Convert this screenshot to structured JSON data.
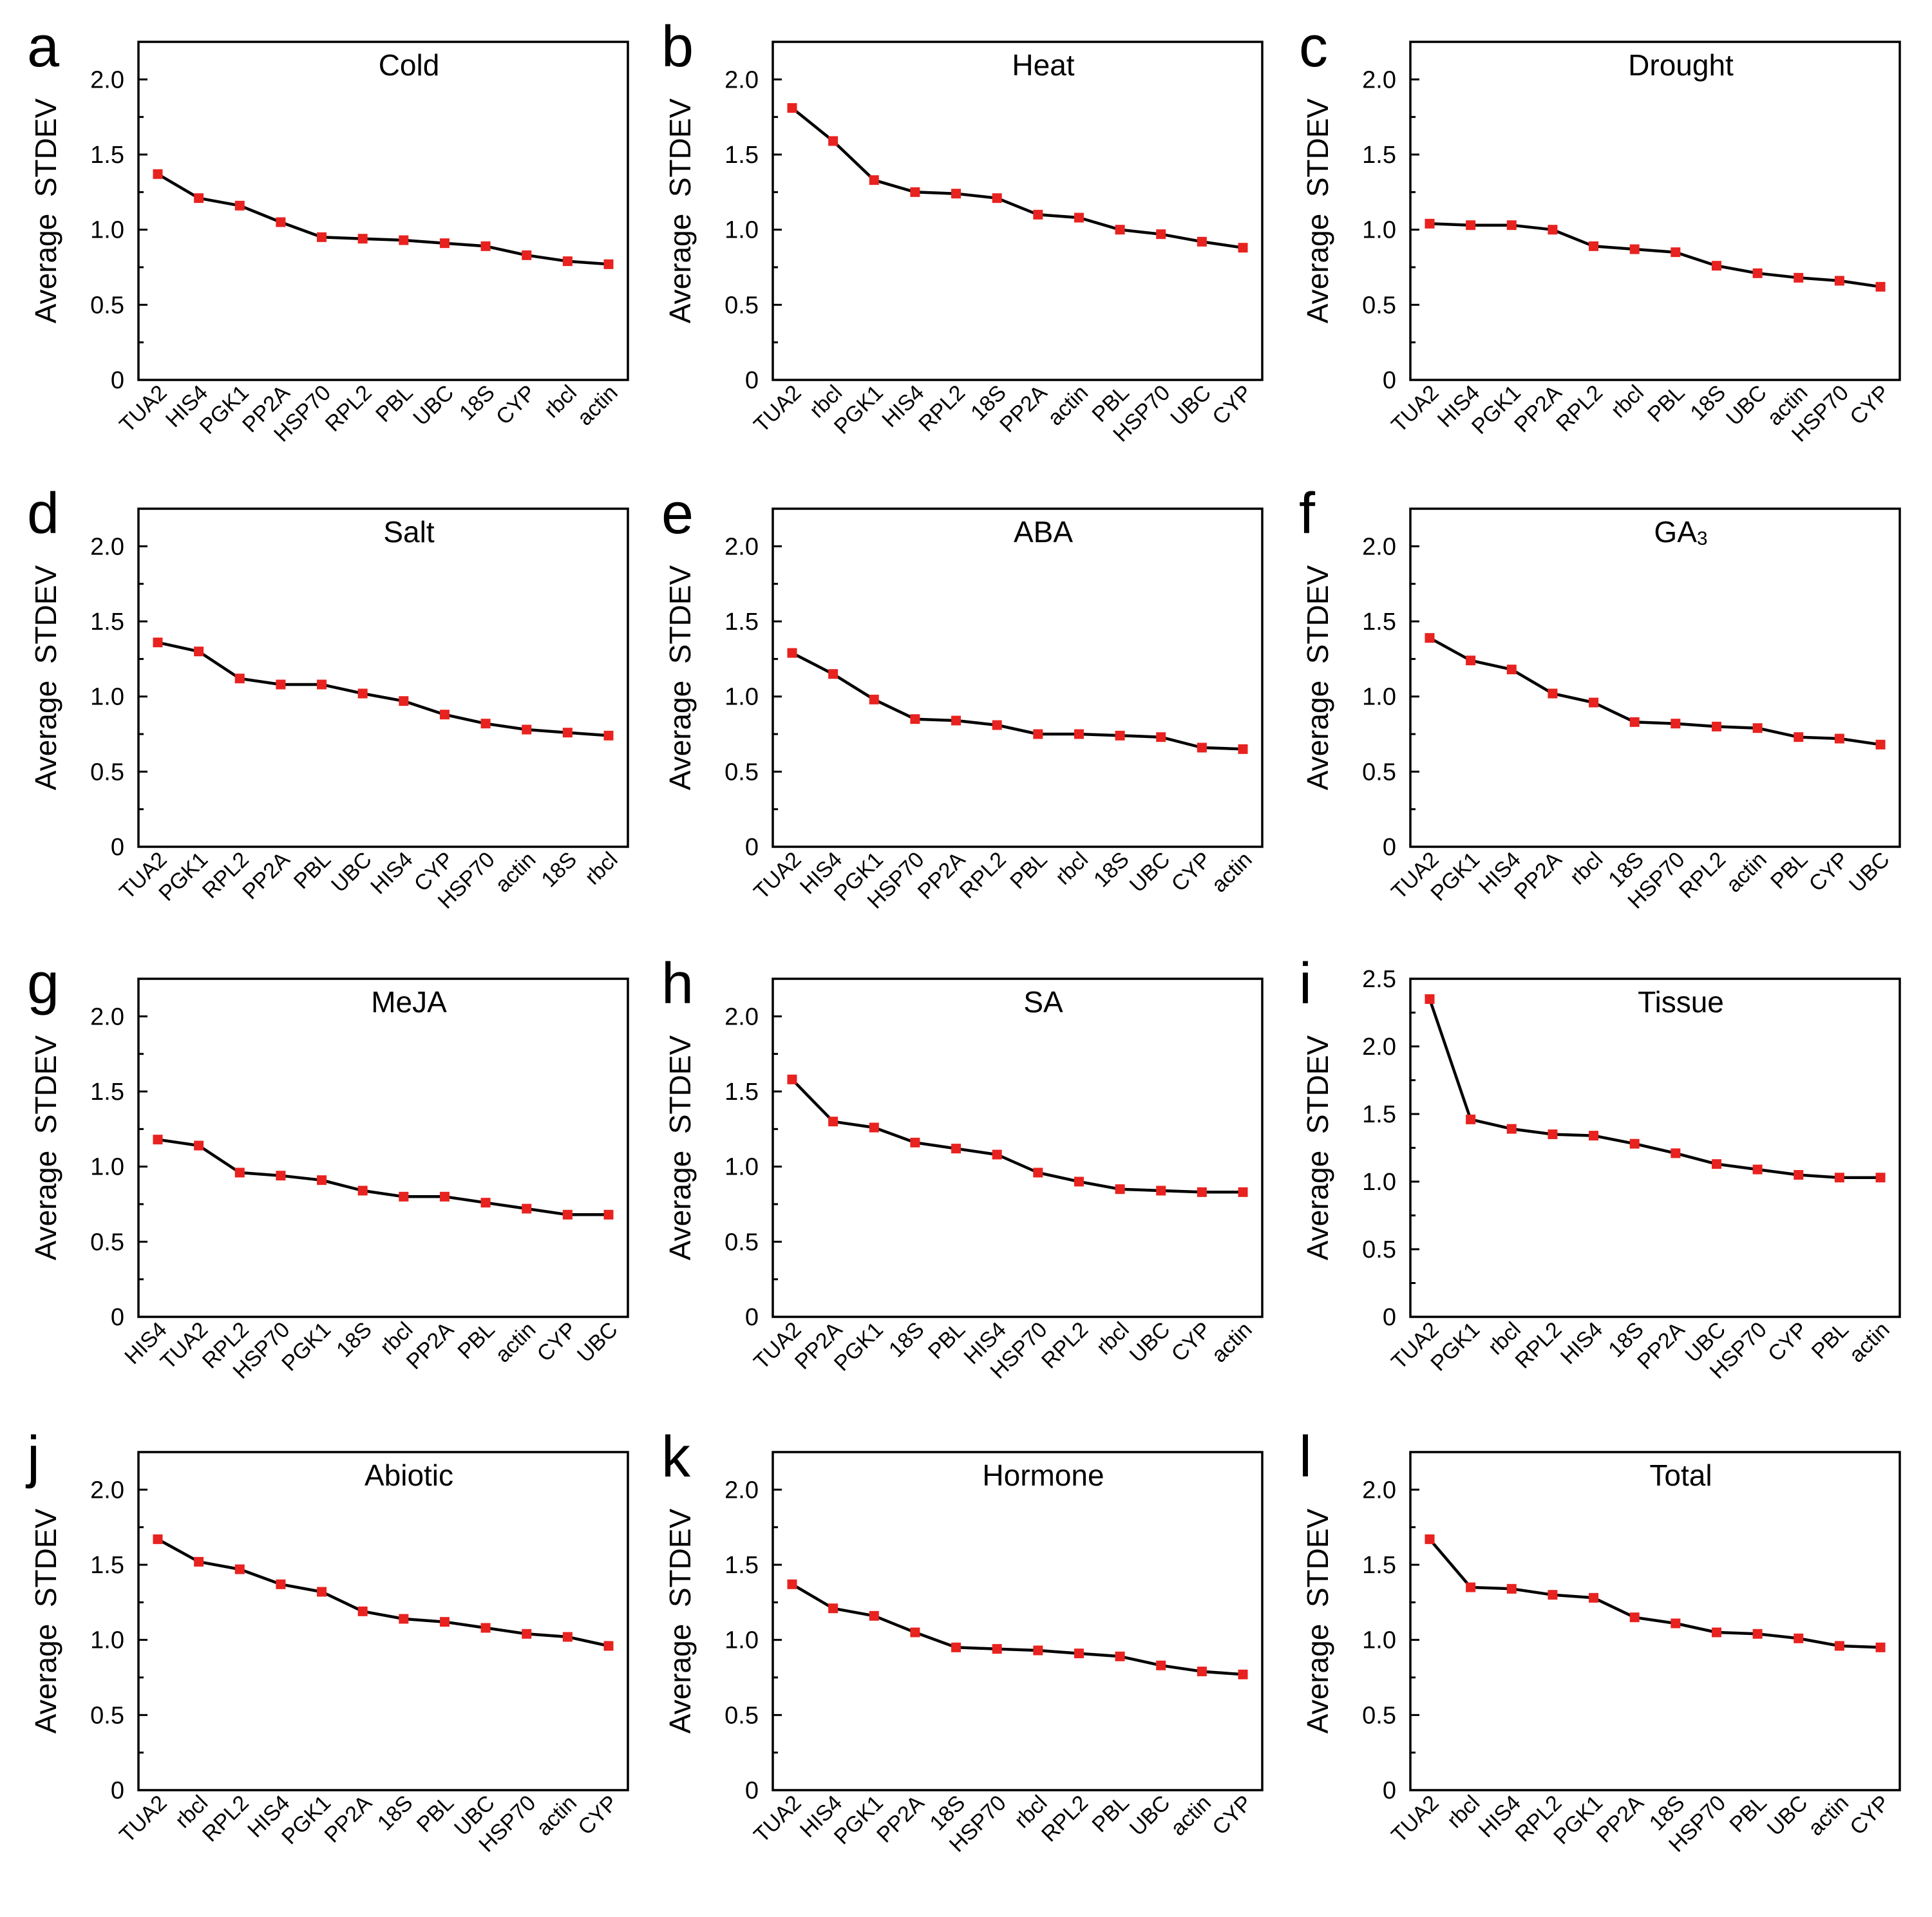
{
  "figure": {
    "colors": {
      "line": "#000000",
      "marker": "#e8221f",
      "axis": "#000000",
      "background": "#ffffff"
    }
  },
  "chart_data": [
    {
      "id": "a",
      "letter": "a",
      "type": "line",
      "title": "Cold",
      "title_sub": "",
      "ylabel": "Average  STDEV",
      "xlabel": "",
      "ylim": [
        0,
        2.25
      ],
      "yticks": [
        0,
        0.5,
        1.0,
        1.5,
        2.0
      ],
      "ytick_labels": [
        "0",
        "0.5",
        "1.0",
        "1.5",
        "2.0"
      ],
      "categories": [
        "TUA2",
        "HIS4",
        "PGK1",
        "PP2A",
        "HSP70",
        "RPL2",
        "PBL",
        "UBC",
        "18S",
        "CYP",
        "rbcl",
        "actin"
      ],
      "values": [
        1.37,
        1.21,
        1.16,
        1.05,
        0.95,
        0.94,
        0.93,
        0.91,
        0.89,
        0.83,
        0.79,
        0.77
      ]
    },
    {
      "id": "b",
      "letter": "b",
      "type": "line",
      "title": "Heat",
      "title_sub": "",
      "ylabel": "Average  STDEV",
      "xlabel": "",
      "ylim": [
        0,
        2.25
      ],
      "yticks": [
        0,
        0.5,
        1.0,
        1.5,
        2.0
      ],
      "ytick_labels": [
        "0",
        "0.5",
        "1.0",
        "1.5",
        "2.0"
      ],
      "categories": [
        "TUA2",
        "rbcl",
        "PGK1",
        "HIS4",
        "RPL2",
        "18S",
        "PP2A",
        "actin",
        "PBL",
        "HSP70",
        "UBC",
        "CYP"
      ],
      "values": [
        1.81,
        1.59,
        1.33,
        1.25,
        1.24,
        1.21,
        1.1,
        1.08,
        1.0,
        0.97,
        0.92,
        0.88
      ]
    },
    {
      "id": "c",
      "letter": "c",
      "type": "line",
      "title": "Drought",
      "title_sub": "",
      "ylabel": "Average  STDEV",
      "xlabel": "",
      "ylim": [
        0,
        2.25
      ],
      "yticks": [
        0,
        0.5,
        1.0,
        1.5,
        2.0
      ],
      "ytick_labels": [
        "0",
        "0.5",
        "1.0",
        "1.5",
        "2.0"
      ],
      "categories": [
        "TUA2",
        "HIS4",
        "PGK1",
        "PP2A",
        "RPL2",
        "rbcl",
        "PBL",
        "18S",
        "UBC",
        "actin",
        "HSP70",
        "CYP"
      ],
      "values": [
        1.04,
        1.03,
        1.03,
        1.0,
        0.89,
        0.87,
        0.85,
        0.76,
        0.71,
        0.68,
        0.66,
        0.62
      ]
    },
    {
      "id": "d",
      "letter": "d",
      "type": "line",
      "title": "Salt",
      "title_sub": "",
      "ylabel": "Average  STDEV",
      "xlabel": "",
      "ylim": [
        0,
        2.25
      ],
      "yticks": [
        0,
        0.5,
        1.0,
        1.5,
        2.0
      ],
      "ytick_labels": [
        "0",
        "0.5",
        "1.0",
        "1.5",
        "2.0"
      ],
      "categories": [
        "TUA2",
        "PGK1",
        "RPL2",
        "PP2A",
        "PBL",
        "UBC",
        "HIS4",
        "CYP",
        "HSP70",
        "actin",
        "18S",
        "rbcl"
      ],
      "values": [
        1.36,
        1.3,
        1.12,
        1.08,
        1.08,
        1.02,
        0.97,
        0.88,
        0.82,
        0.78,
        0.76,
        0.74
      ]
    },
    {
      "id": "e",
      "letter": "e",
      "type": "line",
      "title": "ABA",
      "title_sub": "",
      "ylabel": "Average  STDEV",
      "xlabel": "",
      "ylim": [
        0,
        2.25
      ],
      "yticks": [
        0,
        0.5,
        1.0,
        1.5,
        2.0
      ],
      "ytick_labels": [
        "0",
        "0.5",
        "1.0",
        "1.5",
        "2.0"
      ],
      "categories": [
        "TUA2",
        "HIS4",
        "PGK1",
        "HSP70",
        "PP2A",
        "RPL2",
        "PBL",
        "rbcl",
        "18S",
        "UBC",
        "CYP",
        "actin"
      ],
      "values": [
        1.29,
        1.15,
        0.98,
        0.85,
        0.84,
        0.81,
        0.75,
        0.75,
        0.74,
        0.73,
        0.66,
        0.65
      ]
    },
    {
      "id": "f",
      "letter": "f",
      "type": "line",
      "title": "GA",
      "title_sub": "3",
      "ylabel": "Average  STDEV",
      "xlabel": "",
      "ylim": [
        0,
        2.25
      ],
      "yticks": [
        0,
        0.5,
        1.0,
        1.5,
        2.0
      ],
      "ytick_labels": [
        "0",
        "0.5",
        "1.0",
        "1.5",
        "2.0"
      ],
      "categories": [
        "TUA2",
        "PGK1",
        "HIS4",
        "PP2A",
        "rbcl",
        "18S",
        "HSP70",
        "RPL2",
        "actin",
        "PBL",
        "CYP",
        "UBC"
      ],
      "values": [
        1.39,
        1.24,
        1.18,
        1.02,
        0.96,
        0.83,
        0.82,
        0.8,
        0.79,
        0.73,
        0.72,
        0.68
      ]
    },
    {
      "id": "g",
      "letter": "g",
      "type": "line",
      "title": "MeJA",
      "title_sub": "",
      "ylabel": "Average  STDEV",
      "xlabel": "",
      "ylim": [
        0,
        2.25
      ],
      "yticks": [
        0,
        0.5,
        1.0,
        1.5,
        2.0
      ],
      "ytick_labels": [
        "0",
        "0.5",
        "1.0",
        "1.5",
        "2.0"
      ],
      "categories": [
        "HIS4",
        "TUA2",
        "RPL2",
        "HSP70",
        "PGK1",
        "18S",
        "rbcl",
        "PP2A",
        "PBL",
        "actin",
        "CYP",
        "UBC"
      ],
      "values": [
        1.18,
        1.14,
        0.96,
        0.94,
        0.91,
        0.84,
        0.8,
        0.8,
        0.76,
        0.72,
        0.68,
        0.68
      ]
    },
    {
      "id": "h",
      "letter": "h",
      "type": "line",
      "title": "SA",
      "title_sub": "",
      "ylabel": "Average  STDEV",
      "xlabel": "",
      "ylim": [
        0,
        2.25
      ],
      "yticks": [
        0,
        0.5,
        1.0,
        1.5,
        2.0
      ],
      "ytick_labels": [
        "0",
        "0.5",
        "1.0",
        "1.5",
        "2.0"
      ],
      "categories": [
        "TUA2",
        "PP2A",
        "PGK1",
        "18S",
        "PBL",
        "HIS4",
        "HSP70",
        "RPL2",
        "rbcl",
        "UBC",
        "CYP",
        "actin"
      ],
      "values": [
        1.58,
        1.3,
        1.26,
        1.16,
        1.12,
        1.08,
        0.96,
        0.9,
        0.85,
        0.84,
        0.83,
        0.83
      ]
    },
    {
      "id": "i",
      "letter": "i",
      "type": "line",
      "title": "Tissue",
      "title_sub": "",
      "ylabel": "Average  STDEV",
      "xlabel": "",
      "ylim": [
        0,
        2.5
      ],
      "yticks": [
        0,
        0.5,
        1.0,
        1.5,
        2.0,
        2.5
      ],
      "ytick_labels": [
        "0",
        "0.5",
        "1.0",
        "1.5",
        "2.0",
        "2.5"
      ],
      "categories": [
        "TUA2",
        "PGK1",
        "rbcl",
        "RPL2",
        "HIS4",
        "18S",
        "PP2A",
        "UBC",
        "HSP70",
        "CYP",
        "PBL",
        "actin"
      ],
      "values": [
        2.35,
        1.46,
        1.39,
        1.35,
        1.34,
        1.28,
        1.21,
        1.13,
        1.09,
        1.05,
        1.03,
        1.03
      ]
    },
    {
      "id": "j",
      "letter": "j",
      "type": "line",
      "title": "Abiotic",
      "title_sub": "",
      "ylabel": "Average  STDEV",
      "xlabel": "",
      "ylim": [
        0,
        2.25
      ],
      "yticks": [
        0,
        0.5,
        1.0,
        1.5,
        2.0
      ],
      "ytick_labels": [
        "0",
        "0.5",
        "1.0",
        "1.5",
        "2.0"
      ],
      "categories": [
        "TUA2",
        "rbcl",
        "RPL2",
        "HIS4",
        "PGK1",
        "PP2A",
        "18S",
        "PBL",
        "UBC",
        "HSP70",
        "actin",
        "CYP"
      ],
      "values": [
        1.67,
        1.52,
        1.47,
        1.37,
        1.32,
        1.19,
        1.14,
        1.12,
        1.08,
        1.04,
        1.02,
        0.96
      ]
    },
    {
      "id": "k",
      "letter": "k",
      "type": "line",
      "title": "Hormone",
      "title_sub": "",
      "ylabel": "Average  STDEV",
      "xlabel": "",
      "ylim": [
        0,
        2.25
      ],
      "yticks": [
        0,
        0.5,
        1.0,
        1.5,
        2.0
      ],
      "ytick_labels": [
        "0",
        "0.5",
        "1.0",
        "1.5",
        "2.0"
      ],
      "categories": [
        "TUA2",
        "HIS4",
        "PGK1",
        "PP2A",
        "18S",
        "HSP70",
        "rbcl",
        "RPL2",
        "PBL",
        "UBC",
        "actin",
        "CYP"
      ],
      "values": [
        1.37,
        1.21,
        1.16,
        1.05,
        0.95,
        0.94,
        0.93,
        0.91,
        0.89,
        0.83,
        0.79,
        0.77
      ]
    },
    {
      "id": "l",
      "letter": "l",
      "type": "line",
      "title": "Total",
      "title_sub": "",
      "ylabel": "Average  STDEV",
      "xlabel": "",
      "ylim": [
        0,
        2.25
      ],
      "yticks": [
        0,
        0.5,
        1.0,
        1.5,
        2.0
      ],
      "ytick_labels": [
        "0",
        "0.5",
        "1.0",
        "1.5",
        "2.0"
      ],
      "categories": [
        "TUA2",
        "rbcl",
        "HIS4",
        "RPL2",
        "PGK1",
        "PP2A",
        "18S",
        "HSP70",
        "PBL",
        "UBC",
        "actin",
        "CYP"
      ],
      "values": [
        1.67,
        1.35,
        1.34,
        1.3,
        1.28,
        1.15,
        1.11,
        1.05,
        1.04,
        1.01,
        0.96,
        0.95
      ]
    }
  ]
}
